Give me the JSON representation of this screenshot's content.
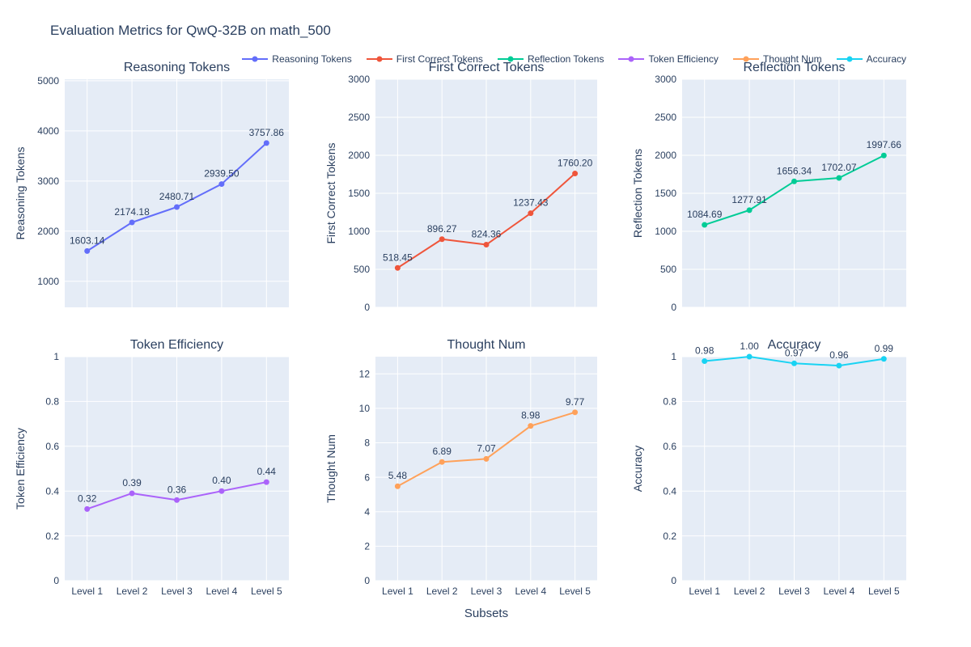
{
  "page": {
    "title": "Evaluation Metrics for QwQ-32B on math_500",
    "xaxis_label": "Subsets"
  },
  "colors": {
    "page_bg": "#ffffff",
    "plot_bg": "#e5ecf6",
    "grid": "#ffffff",
    "text": "#2a3f5f",
    "series": [
      "#636efa",
      "#ef553b",
      "#00cc96",
      "#ab63fa",
      "#ffa15a",
      "#19d3f3"
    ]
  },
  "legend": {
    "items": [
      {
        "label": "Reasoning Tokens",
        "color": "#636efa"
      },
      {
        "label": "First Correct Tokens",
        "color": "#ef553b"
      },
      {
        "label": "Reflection Tokens",
        "color": "#00cc96"
      },
      {
        "label": "Token Efficiency",
        "color": "#ab63fa"
      },
      {
        "label": "Thought Num",
        "color": "#ffa15a"
      },
      {
        "label": "Accuracy",
        "color": "#19d3f3"
      }
    ]
  },
  "x_categories": [
    "Level 1",
    "Level 2",
    "Level 3",
    "Level 4",
    "Level 5"
  ],
  "chart_data": [
    {
      "type": "line",
      "title": "Reasoning Tokens",
      "ylabel": "Reasoning Tokens",
      "color": "#636efa",
      "categories": [
        "Level 1",
        "Level 2",
        "Level 3",
        "Level 4",
        "Level 5"
      ],
      "values": [
        1603.14,
        2174.18,
        2480.71,
        2939.5,
        3757.86
      ],
      "point_labels": [
        "1603.14",
        "2174.18",
        "2480.71",
        "2939.50",
        "3757.86"
      ],
      "ylim": [
        480,
        5030
      ],
      "yticks": [
        1000,
        2000,
        3000,
        4000,
        5000
      ],
      "ytick_labels": [
        "1000",
        "2000",
        "3000",
        "4000",
        "5000"
      ],
      "show_x_ticks": false,
      "grid": true,
      "legend_position": "top"
    },
    {
      "type": "line",
      "title": "First Correct Tokens",
      "ylabel": "First Correct Tokens",
      "color": "#ef553b",
      "categories": [
        "Level 1",
        "Level 2",
        "Level 3",
        "Level 4",
        "Level 5"
      ],
      "values": [
        518.45,
        896.27,
        824.36,
        1237.43,
        1760.2
      ],
      "point_labels": [
        "518.45",
        "896.27",
        "824.36",
        "1237.43",
        "1760.20"
      ],
      "ylim": [
        0,
        3000
      ],
      "yticks": [
        0,
        500,
        1000,
        1500,
        2000,
        2500,
        3000
      ],
      "ytick_labels": [
        "0",
        "500",
        "1000",
        "1500",
        "2000",
        "2500",
        "3000"
      ],
      "show_x_ticks": false,
      "grid": true,
      "legend_position": "top"
    },
    {
      "type": "line",
      "title": "Reflection Tokens",
      "ylabel": "Reflection Tokens",
      "color": "#00cc96",
      "categories": [
        "Level 1",
        "Level 2",
        "Level 3",
        "Level 4",
        "Level 5"
      ],
      "values": [
        1084.69,
        1277.91,
        1656.34,
        1702.07,
        1997.66
      ],
      "point_labels": [
        "1084.69",
        "1277.91",
        "1656.34",
        "1702.07",
        "1997.66"
      ],
      "ylim": [
        0,
        3000
      ],
      "yticks": [
        0,
        500,
        1000,
        1500,
        2000,
        2500,
        3000
      ],
      "ytick_labels": [
        "0",
        "500",
        "1000",
        "1500",
        "2000",
        "2500",
        "3000"
      ],
      "show_x_ticks": false,
      "grid": true,
      "legend_position": "top"
    },
    {
      "type": "line",
      "title": "Token Efficiency",
      "ylabel": "Token Efficiency",
      "color": "#ab63fa",
      "categories": [
        "Level 1",
        "Level 2",
        "Level 3",
        "Level 4",
        "Level 5"
      ],
      "values": [
        0.32,
        0.39,
        0.36,
        0.4,
        0.44
      ],
      "point_labels": [
        "0.32",
        "0.39",
        "0.36",
        "0.40",
        "0.44"
      ],
      "ylim": [
        0,
        1
      ],
      "yticks": [
        0,
        0.2,
        0.4,
        0.6,
        0.8,
        1
      ],
      "ytick_labels": [
        "0",
        "0.2",
        "0.4",
        "0.6",
        "0.8",
        "1"
      ],
      "show_x_ticks": true,
      "grid": true,
      "legend_position": "top"
    },
    {
      "type": "line",
      "title": "Thought Num",
      "ylabel": "Thought Num",
      "color": "#ffa15a",
      "categories": [
        "Level 1",
        "Level 2",
        "Level 3",
        "Level 4",
        "Level 5"
      ],
      "values": [
        5.48,
        6.89,
        7.07,
        8.98,
        9.77
      ],
      "point_labels": [
        "5.48",
        "6.89",
        "7.07",
        "8.98",
        "9.77"
      ],
      "ylim": [
        0,
        13
      ],
      "yticks": [
        0,
        2,
        4,
        6,
        8,
        10,
        12
      ],
      "ytick_labels": [
        "0",
        "2",
        "4",
        "6",
        "8",
        "10",
        "12"
      ],
      "show_x_ticks": true,
      "grid": true,
      "legend_position": "top"
    },
    {
      "type": "line",
      "title": "Accuracy",
      "ylabel": "Accuracy",
      "color": "#19d3f3",
      "categories": [
        "Level 1",
        "Level 2",
        "Level 3",
        "Level 4",
        "Level 5"
      ],
      "values": [
        0.98,
        1.0,
        0.97,
        0.96,
        0.99
      ],
      "point_labels": [
        "0.98",
        "1.00",
        "0.97",
        "0.96",
        "0.99"
      ],
      "ylim": [
        0,
        1
      ],
      "yticks": [
        0,
        0.2,
        0.4,
        0.6,
        0.8,
        1
      ],
      "ytick_labels": [
        "0",
        "0.2",
        "0.4",
        "0.6",
        "0.8",
        "1"
      ],
      "show_x_ticks": true,
      "grid": true,
      "legend_position": "top"
    }
  ]
}
